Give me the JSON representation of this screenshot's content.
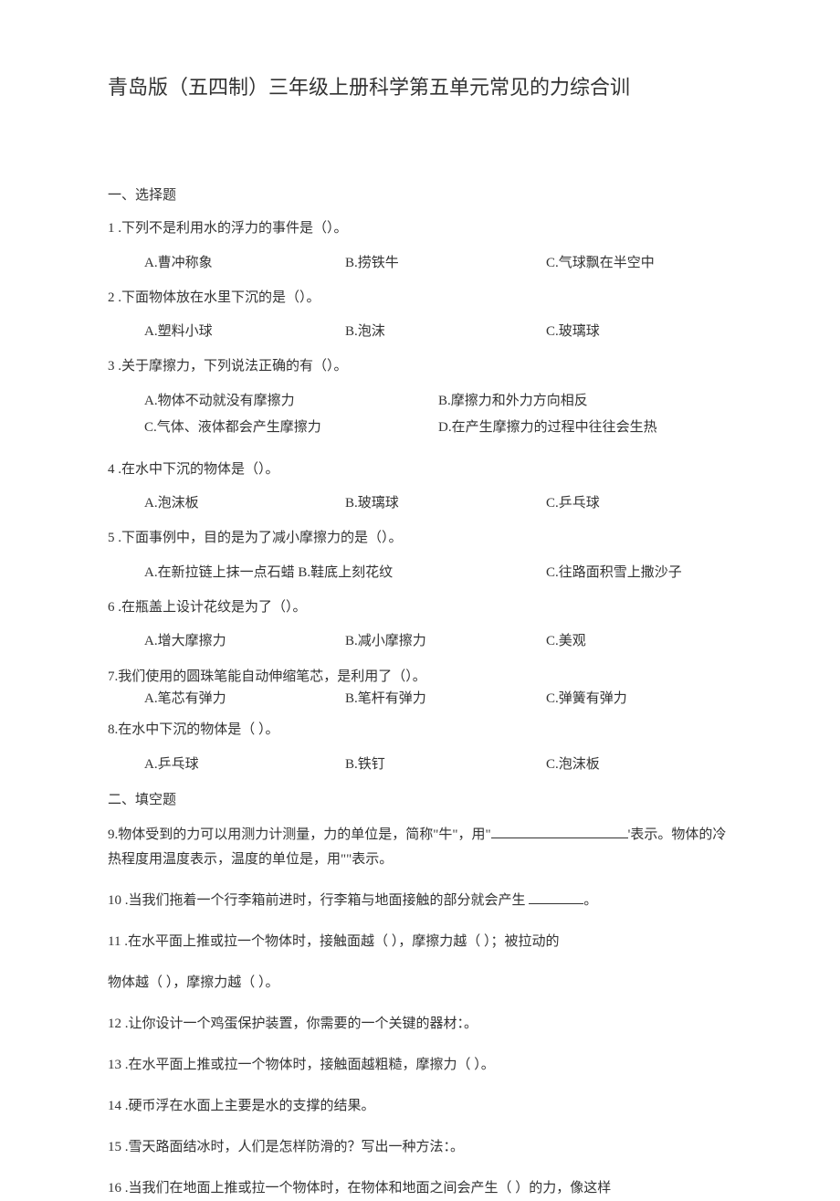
{
  "title": "青岛版（五四制）三年级上册科学第五单元常见的力综合训",
  "section1": "一、选择题",
  "q1": {
    "text": "1 .下列不是利用水的浮力的事件是（）。",
    "a": "A.曹冲称象",
    "b": "B.捞铁牛",
    "c": "C.气球飘在半空中"
  },
  "q2": {
    "text": "2  .下面物体放在水里下沉的是（）。",
    "a": "A.塑料小球",
    "b": "B.泡沫",
    "c": "C.玻璃球"
  },
  "q3": {
    "text": "3  .关于摩擦力，下列说法正确的有（）。",
    "a": "A.物体不动就没有摩擦力",
    "b": "B.摩擦力和外力方向相反",
    "c": "C.气体、液体都会产生摩擦力",
    "d": "D.在产生摩擦力的过程中往往会生热"
  },
  "q4": {
    "text": "4  .在水中下沉的物体是（）。",
    "a": "A.泡沫板",
    "b": "B.玻璃球",
    "c": "C.乒乓球"
  },
  "q5": {
    "text": "5  .下面事例中，目的是为了减小摩擦力的是（）。",
    "a": "A.在新拉链上抹一点石蜡 B.鞋底上刻花纹",
    "c": "C.往路面积雪上撒沙子"
  },
  "q6": {
    "text": "6  .在瓶盖上设计花纹是为了（）。",
    "a": "A.增大摩擦力",
    "b": "B.减小摩擦力",
    "c": "C.美观"
  },
  "q7": {
    "text": "7.我们使用的圆珠笔能自动伸缩笔芯，是利用了（）。",
    "a": "A.笔芯有弹力",
    "b": "B.笔杆有弹力",
    "c": "C.弹簧有弹力"
  },
  "q8": {
    "text": "8.在水中下沉的物体是（     ）。",
    "a": "A.乒乓球",
    "b": "B.铁钉",
    "c": "C.泡沫板"
  },
  "section2": "二、填空题",
  "q9": "9.物体受到的力可以用测力计测量，力的单位是，简称\"牛\"，用\"",
  "q9b": "'表示。物体的冷热程度用温度表示，温度的单位是，用\"\"表示。",
  "q10": "10  .当我们拖着一个行李箱前进时，行李箱与地面接触的部分就会产生 ",
  "q10b": "。",
  "q11": "11  .在水平面上推或拉一个物体时，接触面越（      ），摩擦力越（     ）；被拉动的",
  "q11b": "物体越（      ），摩擦力越（      ）。",
  "q12": "12  .让你设计一个鸡蛋保护装置，你需要的一个关键的器材：。",
  "q13": "13  .在水平面上推或拉一个物体时，接触面越粗糙，摩擦力（        ）。",
  "q14": "14  .硬币浮在水面上主要是水的支撑的结果。",
  "q15": "15  .雪天路面结冰时，人们是怎样防滑的？写出一种方法：。",
  "q16": "16  .当我们在地面上推或拉一个物体时，在物体和地面之间会产生（      ）的力，像这样"
}
